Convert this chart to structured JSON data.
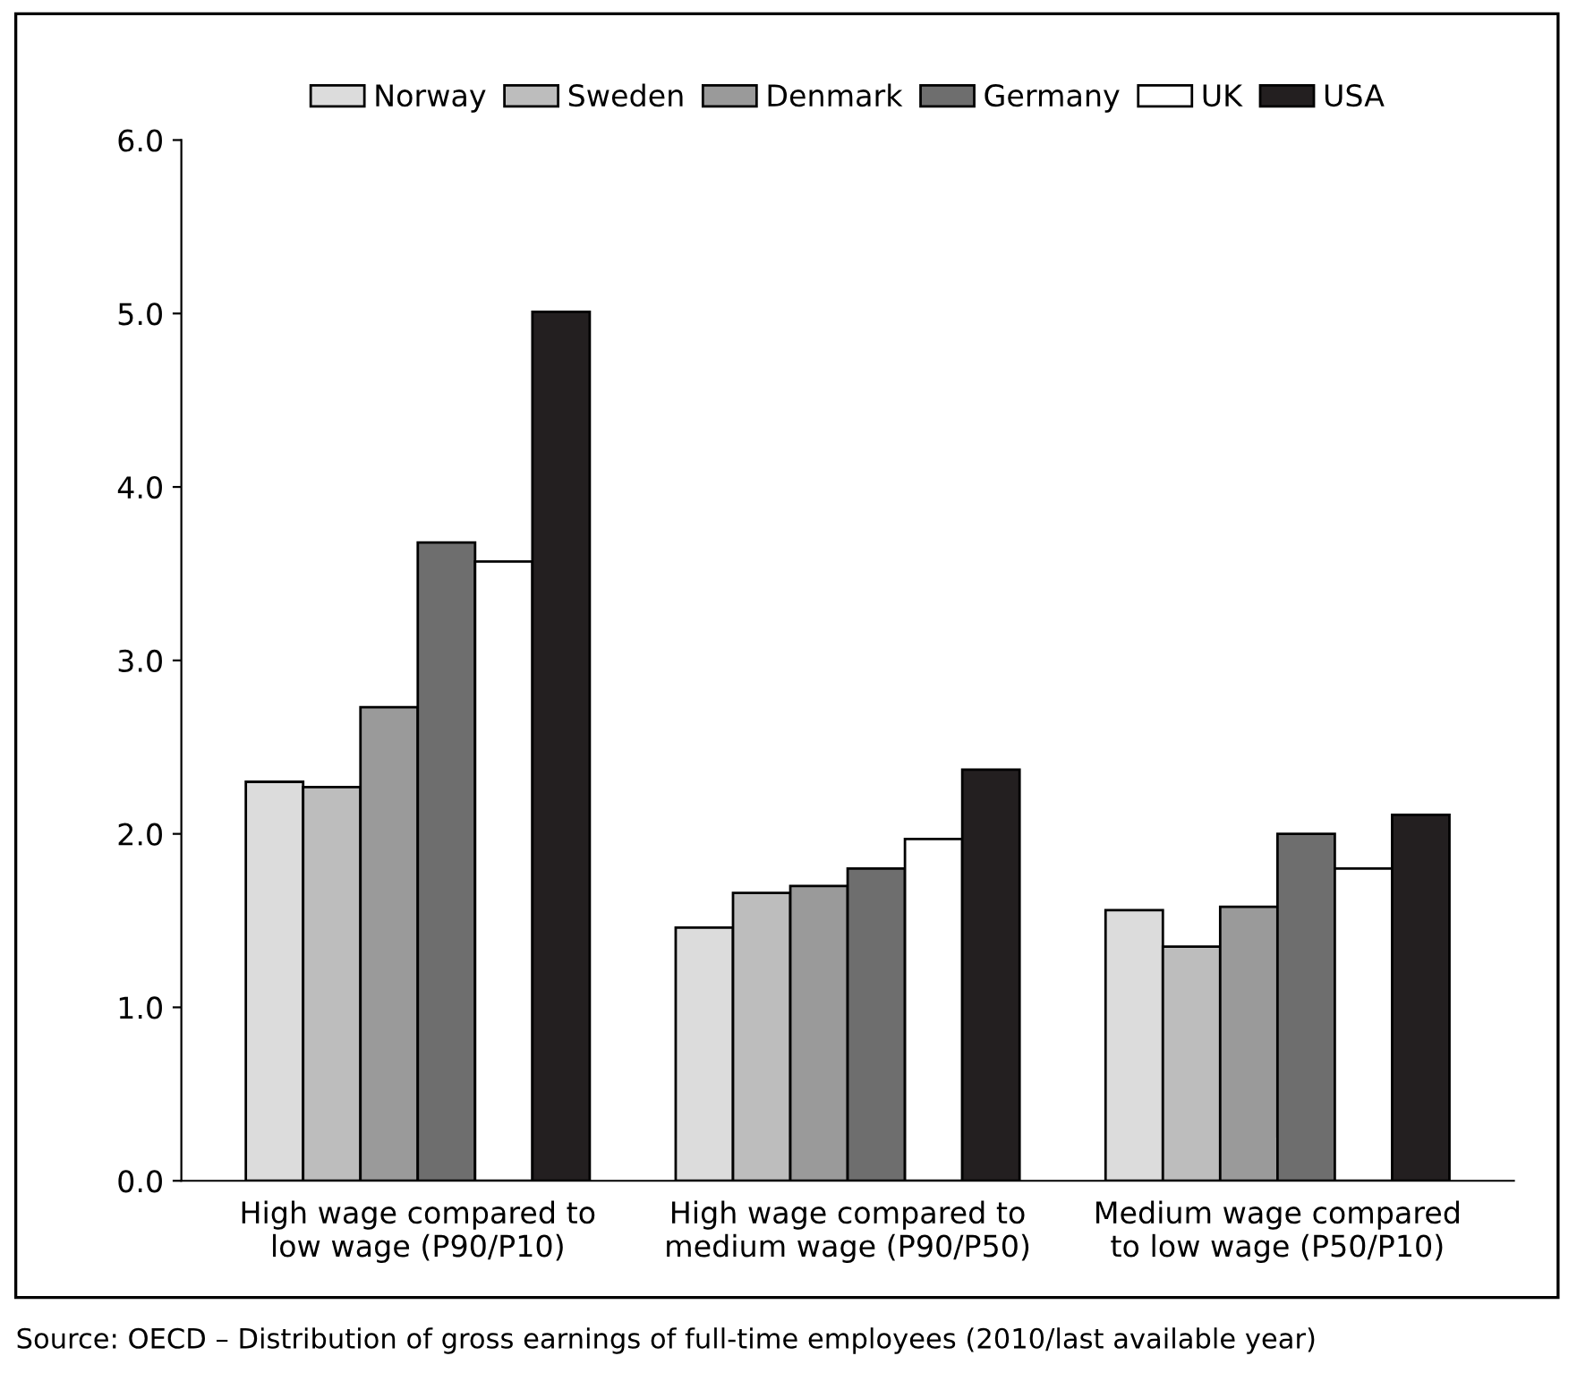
{
  "chart_data": {
    "type": "bar",
    "categories": [
      "High wage compared to\nlow wage (P90/P10)",
      "High wage compared to\nmedium wage (P90/P50)",
      "Medium wage compared\nto low wage (P50/P10)"
    ],
    "series": [
      {
        "name": "Norway",
        "color": "#dcdcdc",
        "values": [
          2.3,
          1.46,
          1.56
        ]
      },
      {
        "name": "Sweden",
        "color": "#bdbdbd",
        "values": [
          2.27,
          1.66,
          1.35
        ]
      },
      {
        "name": "Denmark",
        "color": "#9a9a9a",
        "values": [
          2.73,
          1.7,
          1.58
        ]
      },
      {
        "name": "Germany",
        "color": "#6e6e6e",
        "values": [
          3.68,
          1.8,
          2.0
        ]
      },
      {
        "name": "UK",
        "color": "#ffffff",
        "values": [
          3.57,
          1.97,
          1.8
        ]
      },
      {
        "name": "USA",
        "color": "#231f20",
        "values": [
          5.01,
          2.37,
          2.11
        ]
      }
    ],
    "ylim": [
      0,
      6
    ],
    "yticks": [
      {
        "value": 0,
        "label": "0.0"
      },
      {
        "value": 1,
        "label": "1.0"
      },
      {
        "value": 2,
        "label": "2.0"
      },
      {
        "value": 3,
        "label": "3.0"
      },
      {
        "value": 4,
        "label": "4.0"
      },
      {
        "value": 5,
        "label": "5.0"
      },
      {
        "value": 6,
        "label": "6.0"
      }
    ],
    "grid": false,
    "legend": "top",
    "annotations": [
      "Source: OECD – Distribution of gross earnings of full-time employees (2010/last available year)"
    ]
  }
}
